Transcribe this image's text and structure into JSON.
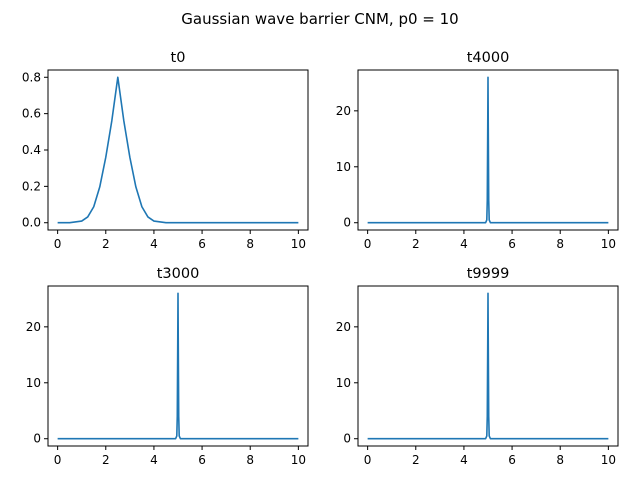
{
  "figure": {
    "title": "Gaussian wave barrier CNM, p0 = 10"
  },
  "colors": {
    "series": "#1f77b4"
  },
  "chart_data": [
    {
      "type": "line",
      "title": "t0",
      "xlabel": "",
      "ylabel": "",
      "xlim": [
        -0.4,
        10.4
      ],
      "ylim": [
        -0.04,
        0.84
      ],
      "x_ticks": [
        0,
        2,
        4,
        6,
        8,
        10
      ],
      "y_ticks": [
        0.0,
        0.2,
        0.4,
        0.6,
        0.8
      ],
      "x_tick_labels": [
        "0",
        "2",
        "4",
        "6",
        "8",
        "10"
      ],
      "y_tick_labels": [
        "0.0",
        "0.2",
        "0.4",
        "0.6",
        "0.8"
      ],
      "grid": false,
      "series": [
        {
          "x": [
            0,
            0.5,
            1.0,
            1.25,
            1.5,
            1.75,
            2.0,
            2.25,
            2.5,
            2.75,
            3.0,
            3.25,
            3.5,
            3.75,
            4.0,
            4.5,
            5.0,
            6.0,
            7.0,
            8.0,
            9.0,
            10.0
          ],
          "y": [
            0.0,
            0.0,
            0.009,
            0.032,
            0.088,
            0.197,
            0.36,
            0.56,
            0.8,
            0.56,
            0.36,
            0.197,
            0.088,
            0.032,
            0.009,
            0.0,
            0.0,
            0.0,
            0.0,
            0.0,
            0.0,
            0.0
          ]
        }
      ]
    },
    {
      "type": "line",
      "title": "t4000",
      "xlabel": "",
      "ylabel": "",
      "xlim": [
        -0.4,
        10.4
      ],
      "ylim": [
        -1.3,
        27.3
      ],
      "x_ticks": [
        0,
        2,
        4,
        6,
        8,
        10
      ],
      "y_ticks": [
        0,
        10,
        20
      ],
      "x_tick_labels": [
        "0",
        "2",
        "4",
        "6",
        "8",
        "10"
      ],
      "y_tick_labels": [
        "0",
        "10",
        "20"
      ],
      "grid": false,
      "series": [
        {
          "x": [
            0,
            4.9,
            4.95,
            4.97,
            4.99,
            5.0,
            5.01,
            5.03,
            5.05,
            5.1,
            10.0
          ],
          "y": [
            0,
            0,
            0.5,
            4.0,
            18.0,
            26.0,
            18.0,
            4.0,
            0.5,
            0,
            0
          ]
        }
      ]
    },
    {
      "type": "line",
      "title": "t3000",
      "xlabel": "",
      "ylabel": "",
      "xlim": [
        -0.4,
        10.4
      ],
      "ylim": [
        -1.3,
        27.3
      ],
      "x_ticks": [
        0,
        2,
        4,
        6,
        8,
        10
      ],
      "y_ticks": [
        0,
        10,
        20
      ],
      "x_tick_labels": [
        "0",
        "2",
        "4",
        "6",
        "8",
        "10"
      ],
      "y_tick_labels": [
        "0",
        "10",
        "20"
      ],
      "grid": false,
      "series": [
        {
          "x": [
            0,
            4.9,
            4.95,
            4.97,
            4.99,
            5.0,
            5.01,
            5.03,
            5.05,
            5.1,
            10.0
          ],
          "y": [
            0,
            0,
            0.5,
            4.0,
            18.0,
            26.0,
            18.0,
            4.0,
            0.5,
            0,
            0
          ]
        }
      ]
    },
    {
      "type": "line",
      "title": "t9999",
      "xlabel": "",
      "ylabel": "",
      "xlim": [
        -0.4,
        10.4
      ],
      "ylim": [
        -1.3,
        27.3
      ],
      "x_ticks": [
        0,
        2,
        4,
        6,
        8,
        10
      ],
      "y_ticks": [
        0,
        10,
        20
      ],
      "x_tick_labels": [
        "0",
        "2",
        "4",
        "6",
        "8",
        "10"
      ],
      "y_tick_labels": [
        "0",
        "10",
        "20"
      ],
      "grid": false,
      "series": [
        {
          "x": [
            0,
            4.9,
            4.95,
            4.97,
            4.99,
            5.0,
            5.01,
            5.03,
            5.05,
            5.1,
            10.0
          ],
          "y": [
            0,
            0,
            0.5,
            4.0,
            18.0,
            26.0,
            18.0,
            4.0,
            0.5,
            0,
            0
          ]
        }
      ]
    }
  ]
}
